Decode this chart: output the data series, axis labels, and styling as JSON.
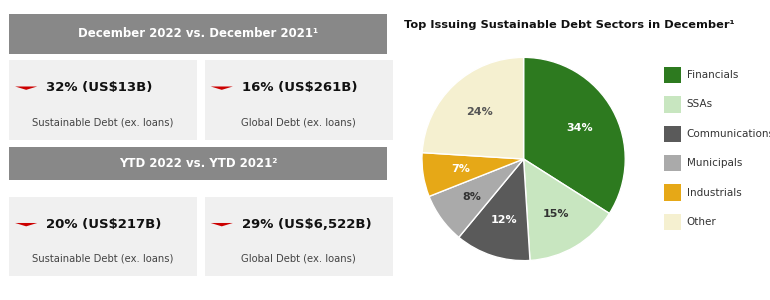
{
  "bg_color": "#ffffff",
  "header1_text": "December 2022 vs. December 2021¹",
  "header2_text": "YTD 2022 vs. YTD 2021²",
  "header_bg": "#888888",
  "header_text_color": "#ffffff",
  "card_bg": "#f0f0f0",
  "arrow_color": "#cc0000",
  "metrics": [
    {
      "value": "32% (US$13B)",
      "label": "Sustainable Debt (ex. loans)"
    },
    {
      "value": "16% (US$261B)",
      "label": "Global Debt (ex. loans)"
    },
    {
      "value": "20% (US$217B)",
      "label": "Sustainable Debt (ex. loans)"
    },
    {
      "value": "29% (US$6,522B)",
      "label": "Global Debt (ex. loans)"
    }
  ],
  "pie_title": "Top Issuing Sustainable Debt Sectors in December¹",
  "pie_labels": [
    "Financials",
    "SSAs",
    "Communications",
    "Municipals",
    "Industrials",
    "Other"
  ],
  "pie_values": [
    34,
    15,
    12,
    8,
    7,
    24
  ],
  "pie_colors": [
    "#2d7a1f",
    "#c8e6c0",
    "#5a5a5a",
    "#aaaaaa",
    "#e6a817",
    "#f5f0d0"
  ],
  "pie_label_colors": [
    "#ffffff",
    "#333333",
    "#ffffff",
    "#333333",
    "#ffffff",
    "#555555"
  ],
  "pie_pct_labels": [
    "34%",
    "15%",
    "12%",
    "8%",
    "7%",
    "24%"
  ]
}
